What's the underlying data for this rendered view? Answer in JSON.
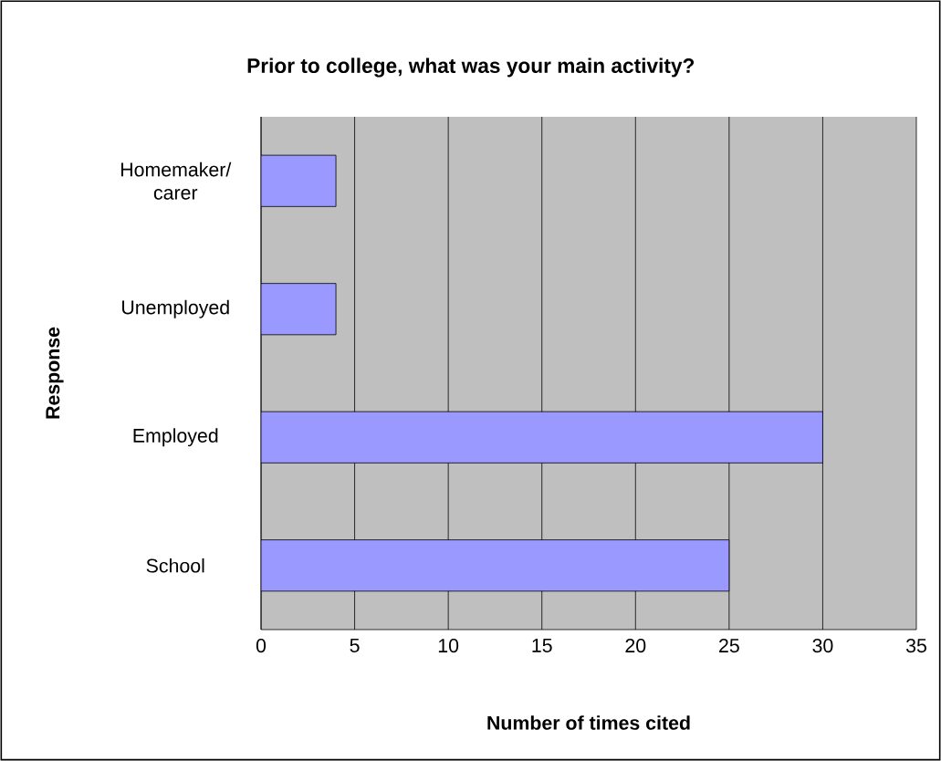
{
  "chart_data": {
    "type": "bar",
    "orientation": "horizontal",
    "title": "Prior to college, what was your main activity?",
    "xlabel": "Number of times cited",
    "ylabel": "Response",
    "categories": [
      "Homemaker/ carer",
      "Unemployed",
      "Employed",
      "School"
    ],
    "values": [
      4,
      4,
      30,
      25
    ],
    "color": "#9999ff",
    "xlim": [
      0,
      35
    ],
    "xticks": [
      0,
      5,
      10,
      15,
      20,
      25,
      30,
      35
    ],
    "grid": "x"
  }
}
